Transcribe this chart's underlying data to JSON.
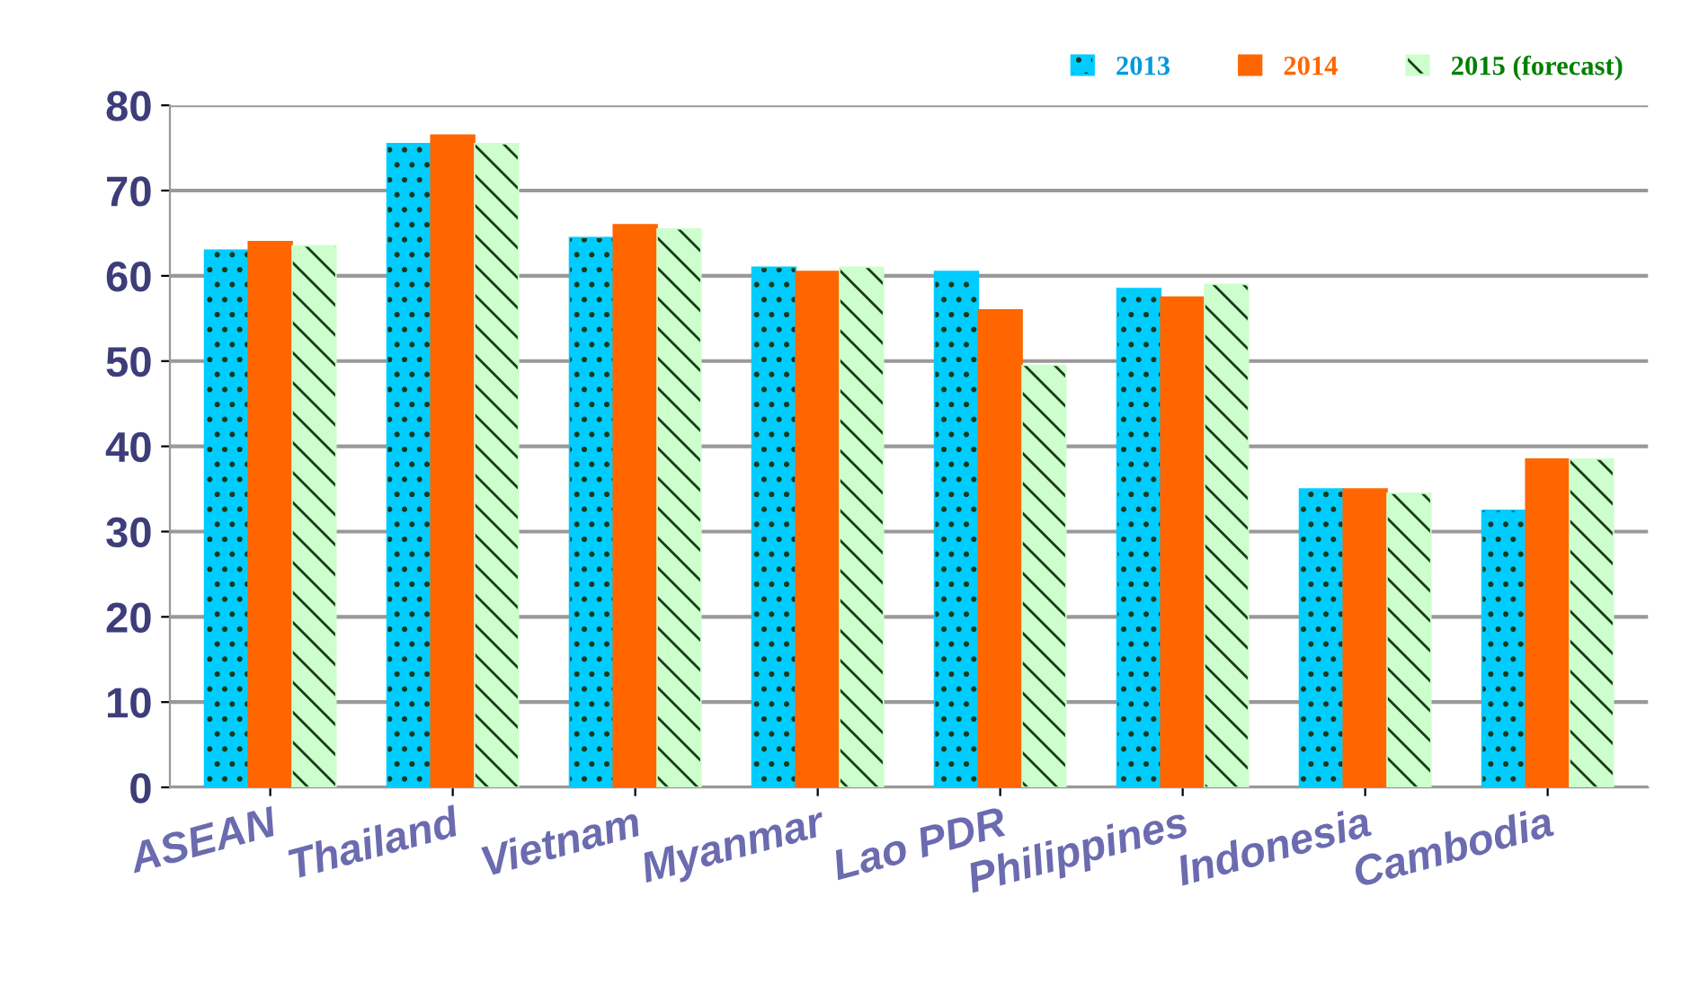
{
  "chart_data": {
    "type": "bar",
    "categories": [
      "ASEAN",
      "Thailand",
      "Vietnam",
      "Myanmar",
      "Lao PDR",
      "Philippines",
      "Indonesia",
      "Cambodia"
    ],
    "series": [
      {
        "name": "2013",
        "color": "#00ccff",
        "values": [
          63,
          75.5,
          64.5,
          61,
          60.5,
          58.5,
          35,
          32.5
        ]
      },
      {
        "name": "2014",
        "color": "#ff6600",
        "values": [
          64,
          76.5,
          66,
          60.5,
          56,
          57.5,
          35,
          38.5
        ]
      },
      {
        "name": "2015 (forecast)",
        "color": "#ccffcc",
        "values": [
          63.5,
          75.5,
          65.5,
          61,
          49.5,
          59,
          34.5,
          38.5
        ]
      }
    ],
    "ylim": [
      0,
      80
    ],
    "yticks": [
      0,
      10,
      20,
      30,
      40,
      50,
      60,
      70,
      80
    ],
    "grid": "y",
    "legend": "top right"
  }
}
